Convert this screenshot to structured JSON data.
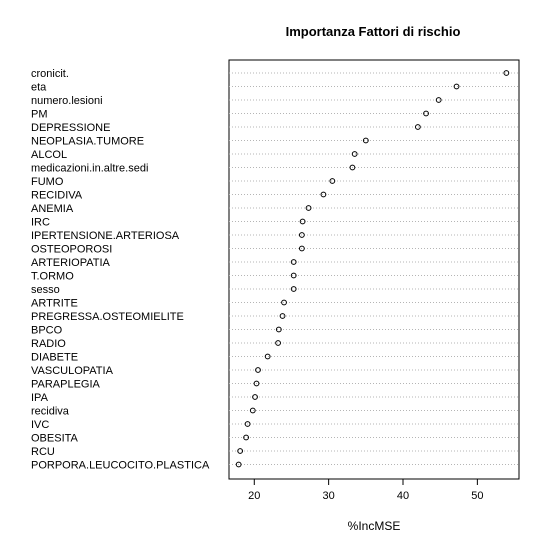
{
  "chart_data": {
    "type": "scatter",
    "title": "Importanza Fattori di rischio",
    "xlabel": "%IncMSE",
    "ylabel": "",
    "xlim": [
      16.6,
      55.6
    ],
    "xticks": [
      20,
      30,
      40,
      50
    ],
    "grid": "dotted horizontal",
    "categories": [
      "cronicit.",
      "eta",
      "numero.lesioni",
      "PM",
      "DEPRESSIONE",
      "NEOPLASIA.TUMORE",
      "ALCOL",
      "medicazioni.in.altre.sedi",
      "FUMO",
      "RECIDIVA",
      "ANEMIA",
      "IRC",
      "IPERTENSIONE.ARTERIOSA",
      "OSTEOPOROSI",
      "ARTERIOPATIA",
      "T.ORMO",
      "sesso",
      "ARTRITE",
      "PREGRESSA.OSTEOMIELITE",
      "BPCO",
      "RADIO",
      "DIABETE",
      "VASCULOPATIA",
      "PARAPLEGIA",
      "IPA",
      "recidiva",
      "IVC",
      "OBESITA",
      "RCU",
      "PORPORA.LEUCOCITO.PLASTICA"
    ],
    "values": [
      53.9,
      47.2,
      44.8,
      43.1,
      42.0,
      35.0,
      33.5,
      33.2,
      30.5,
      29.3,
      27.3,
      26.5,
      26.4,
      26.4,
      25.3,
      25.3,
      25.3,
      24.0,
      23.8,
      23.3,
      23.2,
      21.8,
      20.5,
      20.3,
      20.1,
      19.8,
      19.1,
      18.9,
      18.1,
      17.9
    ]
  }
}
